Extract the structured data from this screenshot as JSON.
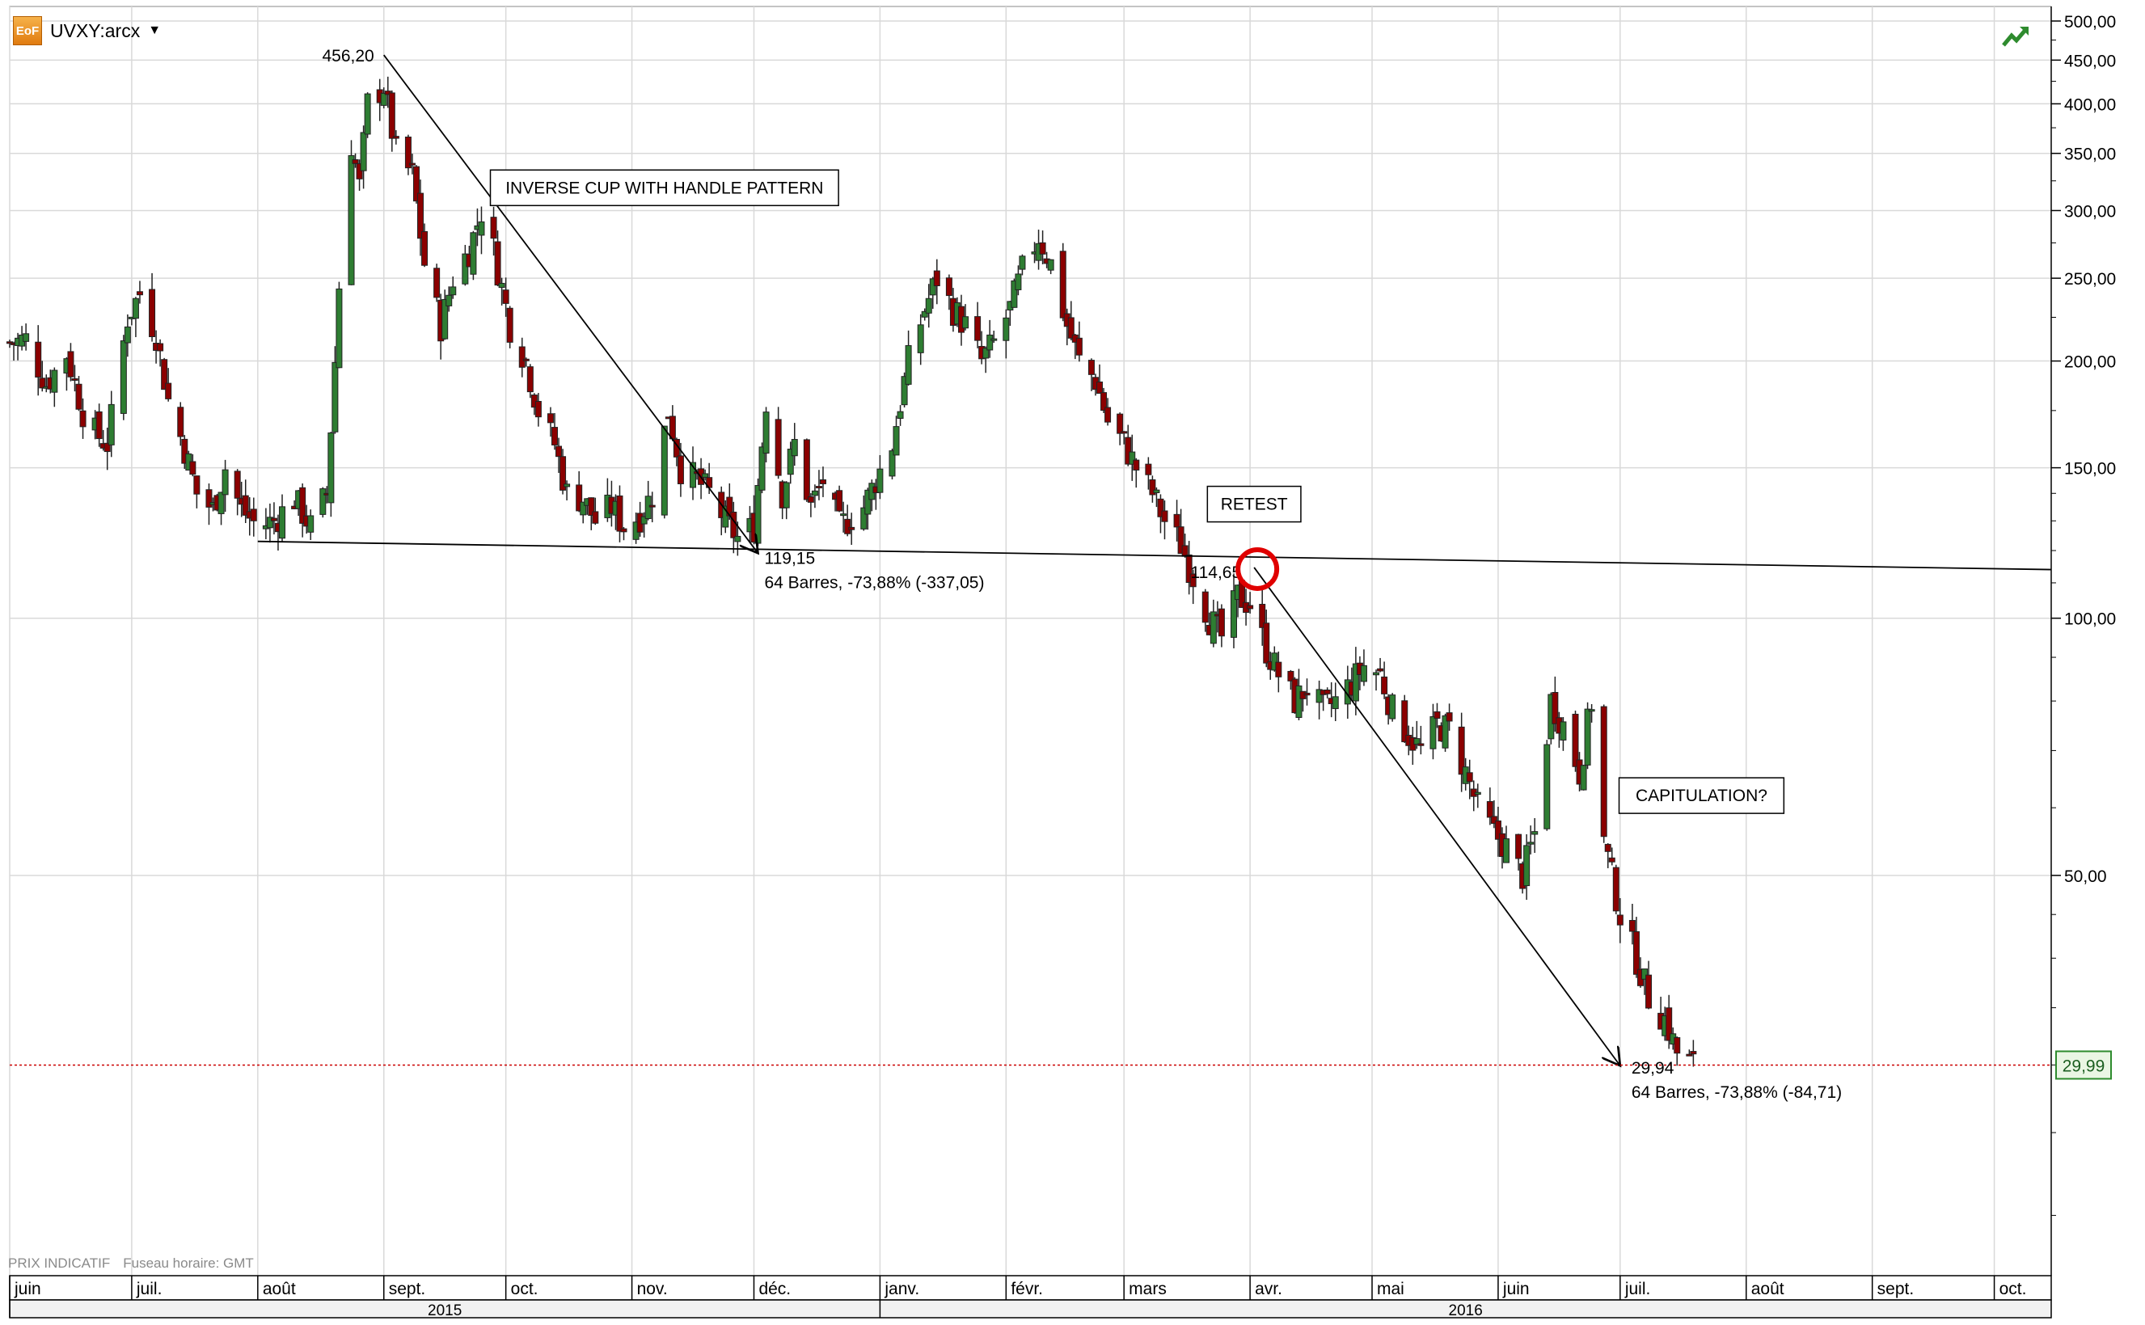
{
  "header": {
    "logo_text": "EoF",
    "symbol": "UVXY:arcx",
    "dropdown_icon": "caret-down-icon",
    "trend_icon": "trend-arrow-icon"
  },
  "footer": {
    "indicative": "PRIX INDICATIF",
    "timezone": "Fuseau horaire: GMT"
  },
  "colors": {
    "up_candle": "#2e7d32",
    "down_candle": "#8b0000",
    "grid": "#d9d9d9",
    "last_price_line": "#cc0000",
    "last_price_badge": "#2e8b2e",
    "retest_circle": "#e00000"
  },
  "chart_data": {
    "type": "candlestick",
    "title": "",
    "y_scale": "log",
    "ylim": [
      17,
      520
    ],
    "xlim": [
      "2015-06-01",
      "2016-10-15"
    ],
    "y_ticks": [
      {
        "value": 500,
        "label": "500,00"
      },
      {
        "value": 450,
        "label": "450,00"
      },
      {
        "value": 400,
        "label": "400,00"
      },
      {
        "value": 350,
        "label": "350,00"
      },
      {
        "value": 300,
        "label": "300,00"
      },
      {
        "value": 250,
        "label": "250,00"
      },
      {
        "value": 200,
        "label": "200,00"
      },
      {
        "value": 150,
        "label": "150,00"
      },
      {
        "value": 100,
        "label": "100,00"
      },
      {
        "value": 50,
        "label": "50,00"
      }
    ],
    "y_minor_ticks": [
      475,
      425,
      375,
      325,
      275,
      225,
      175,
      140,
      130,
      120,
      110,
      90,
      80,
      70,
      60,
      45,
      40,
      35,
      30,
      25,
      20
    ],
    "x_month_ticks": [
      {
        "date": "2015-06-01",
        "label": "juin"
      },
      {
        "date": "2015-07-01",
        "label": "juil."
      },
      {
        "date": "2015-08-01",
        "label": "août"
      },
      {
        "date": "2015-09-01",
        "label": "sept."
      },
      {
        "date": "2015-10-01",
        "label": "oct."
      },
      {
        "date": "2015-11-01",
        "label": "nov."
      },
      {
        "date": "2015-12-01",
        "label": "déc."
      },
      {
        "date": "2016-01-01",
        "label": "janv."
      },
      {
        "date": "2016-02-01",
        "label": "févr."
      },
      {
        "date": "2016-03-01",
        "label": "mars"
      },
      {
        "date": "2016-04-01",
        "label": "avr."
      },
      {
        "date": "2016-05-01",
        "label": "mai"
      },
      {
        "date": "2016-06-01",
        "label": "juin"
      },
      {
        "date": "2016-07-01",
        "label": "juil."
      },
      {
        "date": "2016-08-01",
        "label": "août"
      },
      {
        "date": "2016-09-01",
        "label": "sept."
      },
      {
        "date": "2016-10-01",
        "label": "oct."
      }
    ],
    "x_year_labels": [
      {
        "label": "2015",
        "from": "2015-06-01",
        "to": "2016-01-01"
      },
      {
        "label": "2016",
        "from": "2016-01-01",
        "to": "2016-10-15"
      }
    ],
    "close_path": [
      [
        "2015-06-01",
        210
      ],
      [
        "2015-06-05",
        212
      ],
      [
        "2015-06-10",
        188
      ],
      [
        "2015-06-15",
        204
      ],
      [
        "2015-06-20",
        168
      ],
      [
        "2015-06-25",
        160
      ],
      [
        "2015-06-30",
        225
      ],
      [
        "2015-07-03",
        240
      ],
      [
        "2015-07-07",
        215
      ],
      [
        "2015-07-10",
        180
      ],
      [
        "2015-07-14",
        158
      ],
      [
        "2015-07-17",
        140
      ],
      [
        "2015-07-21",
        134
      ],
      [
        "2015-07-24",
        150
      ],
      [
        "2015-07-28",
        134
      ],
      [
        "2015-08-01",
        128
      ],
      [
        "2015-08-05",
        130
      ],
      [
        "2015-08-10",
        138
      ],
      [
        "2015-08-14",
        128
      ],
      [
        "2015-08-18",
        140
      ],
      [
        "2015-08-20",
        200
      ],
      [
        "2015-08-22",
        300
      ],
      [
        "2015-08-24",
        360
      ],
      [
        "2015-08-26",
        320
      ],
      [
        "2015-08-28",
        400
      ],
      [
        "2015-09-01",
        420
      ],
      [
        "2015-09-04",
        350
      ],
      [
        "2015-09-08",
        330
      ],
      [
        "2015-09-11",
        260
      ],
      [
        "2015-09-15",
        220
      ],
      [
        "2015-09-18",
        250
      ],
      [
        "2015-09-22",
        270
      ],
      [
        "2015-09-25",
        300
      ],
      [
        "2015-09-28",
        270
      ],
      [
        "2015-10-02",
        220
      ],
      [
        "2015-10-06",
        200
      ],
      [
        "2015-10-09",
        175
      ],
      [
        "2015-10-13",
        160
      ],
      [
        "2015-10-16",
        140
      ],
      [
        "2015-10-20",
        138
      ],
      [
        "2015-10-23",
        130
      ],
      [
        "2015-10-27",
        135
      ],
      [
        "2015-10-30",
        128
      ],
      [
        "2015-11-03",
        132
      ],
      [
        "2015-11-06",
        140
      ],
      [
        "2015-11-10",
        175
      ],
      [
        "2015-11-13",
        150
      ],
      [
        "2015-11-17",
        145
      ],
      [
        "2015-11-20",
        140
      ],
      [
        "2015-11-24",
        130
      ],
      [
        "2015-11-27",
        124
      ],
      [
        "2015-12-01",
        128
      ],
      [
        "2015-12-04",
        180
      ],
      [
        "2015-12-08",
        140
      ],
      [
        "2015-12-11",
        160
      ],
      [
        "2015-12-15",
        135
      ],
      [
        "2015-12-18",
        145
      ],
      [
        "2015-12-22",
        128
      ],
      [
        "2015-12-28",
        135
      ],
      [
        "2016-01-04",
        160
      ],
      [
        "2016-01-08",
        200
      ],
      [
        "2016-01-12",
        230
      ],
      [
        "2016-01-15",
        250
      ],
      [
        "2016-01-19",
        230
      ],
      [
        "2016-01-22",
        220
      ],
      [
        "2016-01-26",
        200
      ],
      [
        "2016-01-29",
        210
      ],
      [
        "2016-02-02",
        230
      ],
      [
        "2016-02-05",
        255
      ],
      [
        "2016-02-09",
        280
      ],
      [
        "2016-02-12",
        260
      ],
      [
        "2016-02-16",
        220
      ],
      [
        "2016-02-19",
        200
      ],
      [
        "2016-02-23",
        190
      ],
      [
        "2016-02-26",
        170
      ],
      [
        "2016-03-01",
        160
      ],
      [
        "2016-03-04",
        150
      ],
      [
        "2016-03-08",
        140
      ],
      [
        "2016-03-11",
        130
      ],
      [
        "2016-03-15",
        122
      ],
      [
        "2016-03-18",
        112
      ],
      [
        "2016-03-22",
        100
      ],
      [
        "2016-03-25",
        95
      ],
      [
        "2016-03-29",
        106
      ],
      [
        "2016-04-01",
        104
      ],
      [
        "2016-04-05",
        92
      ],
      [
        "2016-04-08",
        86
      ],
      [
        "2016-04-12",
        80
      ],
      [
        "2016-04-15",
        83
      ],
      [
        "2016-04-19",
        78
      ],
      [
        "2016-04-22",
        80
      ],
      [
        "2016-04-26",
        84
      ],
      [
        "2016-04-29",
        88
      ],
      [
        "2016-05-03",
        86
      ],
      [
        "2016-05-06",
        78
      ],
      [
        "2016-05-10",
        73
      ],
      [
        "2016-05-13",
        70
      ],
      [
        "2016-05-17",
        75
      ],
      [
        "2016-05-20",
        74
      ],
      [
        "2016-05-24",
        66
      ],
      [
        "2016-05-27",
        60
      ],
      [
        "2016-05-31",
        56
      ],
      [
        "2016-06-03",
        54
      ],
      [
        "2016-06-07",
        50
      ],
      [
        "2016-06-10",
        56
      ],
      [
        "2016-06-14",
        80
      ],
      [
        "2016-06-17",
        75
      ],
      [
        "2016-06-21",
        66
      ],
      [
        "2016-06-24",
        80
      ],
      [
        "2016-06-27",
        55
      ],
      [
        "2016-07-01",
        45
      ],
      [
        "2016-07-05",
        40
      ],
      [
        "2016-07-08",
        36
      ],
      [
        "2016-07-12",
        34
      ],
      [
        "2016-07-15",
        31
      ],
      [
        "2016-07-19",
        30
      ]
    ],
    "trendlines": [
      {
        "name": "neckline",
        "from": [
          "2015-08-01",
          123
        ],
        "to": [
          "2016-10-15",
          114
        ]
      },
      {
        "name": "decline-1",
        "from": [
          "2015-09-01",
          456.2
        ],
        "to": [
          "2015-12-02",
          119.15
        ],
        "arrow": true
      },
      {
        "name": "decline-2",
        "from": [
          "2016-04-02",
          114.65
        ],
        "to": [
          "2016-07-01",
          29.94
        ],
        "arrow": true
      }
    ],
    "annotations": [
      {
        "text": "456,20",
        "date": "2015-09-01",
        "value": 456.2
      },
      {
        "text": "119,15",
        "date": "2015-12-02",
        "value": 119.15
      },
      {
        "text": "64 Barres, -73,88% (-337,05)",
        "date": "2015-12-02",
        "value": 119.15
      },
      {
        "text": "114,65",
        "date": "2016-04-02",
        "value": 114.65
      },
      {
        "text": "29,94",
        "date": "2016-07-01",
        "value": 29.94
      },
      {
        "text": "64 Barres, -73,88% (-84,71)",
        "date": "2016-07-01",
        "value": 29.94
      }
    ],
    "label_boxes": [
      {
        "text": "INVERSE CUP WITH HANDLE PATTERN",
        "date": "2015-11-09",
        "value": 319
      },
      {
        "text": "RETEST",
        "date": "2016-04-02",
        "value": 136
      },
      {
        "text": "CAPITULATION?",
        "date": "2016-07-21",
        "value": 62
      }
    ],
    "retest_marker": {
      "date": "2016-04-02",
      "value": 114.65
    },
    "last_price": {
      "value": 29.99,
      "label": "29,99"
    }
  }
}
